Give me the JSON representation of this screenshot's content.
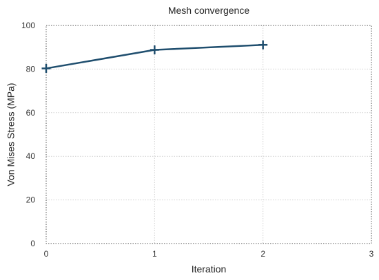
{
  "chart_data": {
    "type": "line",
    "title": "Mesh convergence",
    "xlabel": "Iteration",
    "ylabel": "Von Mises Stress (MPa)",
    "xlim": [
      0,
      3
    ],
    "ylim": [
      0,
      100
    ],
    "xticks": [
      0,
      1,
      2,
      3
    ],
    "yticks": [
      0,
      20,
      40,
      60,
      80,
      100
    ],
    "grid": true,
    "legend": "none",
    "series": [
      {
        "x": [
          0,
          1,
          2
        ],
        "y": [
          80.3,
          88.8,
          91.1
        ],
        "color": "#1f4e6e",
        "marker": "plus"
      }
    ]
  }
}
